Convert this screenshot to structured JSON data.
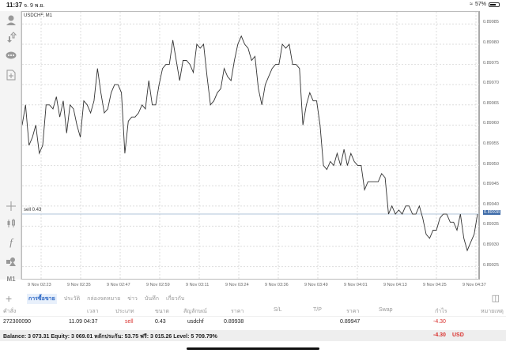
{
  "status_bar": {
    "time": "11:37",
    "date": "จ. 9 พ.ย.",
    "battery": "57%",
    "wifi_icon": "wifi-icon"
  },
  "sidebar": {
    "items": [
      {
        "name": "account-icon"
      },
      {
        "name": "trade-arrows-icon"
      },
      {
        "name": "chat-icon"
      },
      {
        "name": "new-document-icon"
      },
      {
        "name": "crosshair-icon"
      },
      {
        "name": "candlestick-icon"
      },
      {
        "name": "indicator-f-icon"
      },
      {
        "name": "objects-icon"
      },
      {
        "name": "timeframe",
        "label": "M1"
      }
    ]
  },
  "chart": {
    "title": "USDCHF, M1",
    "order_line_label": "sell 0.43",
    "current_price": "0.89938",
    "line_color": "#333333",
    "order_line_color": "#b0c4d8"
  },
  "chart_data": {
    "type": "line",
    "title": "USDCHF, M1",
    "xlabel": "",
    "ylabel": "",
    "x_ticks": [
      "9 Nov 02:23",
      "9 Nov 02:35",
      "9 Nov 02:47",
      "9 Nov 02:59",
      "9 Nov 03:11",
      "9 Nov 03:24",
      "9 Nov 03:36",
      "9 Nov 03:49",
      "9 Nov 04:01",
      "9 Nov 04:13",
      "9 Nov 04:25",
      "9 Nov 04:37"
    ],
    "y_ticks": [
      "0.89985",
      "0.89980",
      "0.89975",
      "0.89970",
      "0.89965",
      "0.89960",
      "0.89955",
      "0.89950",
      "0.89945",
      "0.89940",
      "0.89935",
      "0.89930",
      "0.89925"
    ],
    "ylim": [
      0.89922,
      0.89988
    ],
    "grid": true,
    "horizontal_line": {
      "label": "sell 0.43",
      "value": 0.89938
    },
    "values": [
      0.8996,
      0.89965,
      0.89955,
      0.89957,
      0.8996,
      0.89953,
      0.89955,
      0.89965,
      0.89965,
      0.89964,
      0.89967,
      0.89962,
      0.89966,
      0.89958,
      0.89965,
      0.89964,
      0.8996,
      0.89957,
      0.89966,
      0.89965,
      0.89963,
      0.89966,
      0.89974,
      0.89968,
      0.89963,
      0.89964,
      0.89968,
      0.8997,
      0.8997,
      0.89968,
      0.89953,
      0.89961,
      0.89962,
      0.89962,
      0.89963,
      0.89965,
      0.89964,
      0.89971,
      0.89965,
      0.89965,
      0.8997,
      0.89974,
      0.89975,
      0.89975,
      0.89981,
      0.89976,
      0.89971,
      0.89976,
      0.89976,
      0.89975,
      0.89973,
      0.8998,
      0.89979,
      0.8998,
      0.89972,
      0.89965,
      0.89966,
      0.89968,
      0.89969,
      0.89974,
      0.89972,
      0.89971,
      0.89976,
      0.8998,
      0.89982,
      0.8998,
      0.89979,
      0.89976,
      0.89977,
      0.89969,
      0.89965,
      0.8997,
      0.89972,
      0.89974,
      0.89975,
      0.89975,
      0.8998,
      0.89979,
      0.8998,
      0.89975,
      0.89975,
      0.89974,
      0.8996,
      0.89965,
      0.89968,
      0.89966,
      0.89966,
      0.8996,
      0.8995,
      0.89949,
      0.89951,
      0.8995,
      0.89953,
      0.8995,
      0.89954,
      0.8995,
      0.89953,
      0.89951,
      0.8995,
      0.8995,
      0.89944,
      0.89946,
      0.89946,
      0.89946,
      0.89946,
      0.89948,
      0.89947,
      0.89938,
      0.8994,
      0.89938,
      0.89939,
      0.89938,
      0.8994,
      0.8994,
      0.89938,
      0.89938,
      0.8994,
      0.89937,
      0.89933,
      0.89932,
      0.89934,
      0.89934,
      0.89937,
      0.89938,
      0.89938,
      0.89936,
      0.89936,
      0.89934,
      0.89938,
      0.89932,
      0.89929,
      0.89931,
      0.89933,
      0.89938
    ]
  },
  "bottom_tabs": {
    "items": [
      {
        "label": "การซื้อขาย",
        "active": true
      },
      {
        "label": "ประวัติ"
      },
      {
        "label": "กล่องจดหมาย"
      },
      {
        "label": "ข่าว"
      },
      {
        "label": "บันทึก"
      },
      {
        "label": "เกี่ยวกับ"
      }
    ]
  },
  "table": {
    "headers": [
      "คำสั่ง",
      "เวลา",
      "ประเภท",
      "ขนาด",
      "สัญลักษณ์",
      "ราคา",
      "S/L",
      "T/P",
      "ราคา",
      "Swap",
      "กำไร",
      "หมายเหตุ"
    ],
    "rows": [
      {
        "order": "272300090",
        "time": "11.09 04:37",
        "type": "sell",
        "size": "0.43",
        "symbol": "usdchf",
        "price": "0.89938",
        "sl": "",
        "tp": "",
        "current_price": "0.89947",
        "swap": "",
        "profit": "-4.30",
        "comment": ""
      }
    ],
    "summary": {
      "text": "Balance: 3 073.31 Equity: 3 069.01 หลักประกัน: 53.75 ฟรี: 3 015.26 Level: 5 709.79%",
      "profit": "-4.30",
      "currency": "USD"
    }
  }
}
